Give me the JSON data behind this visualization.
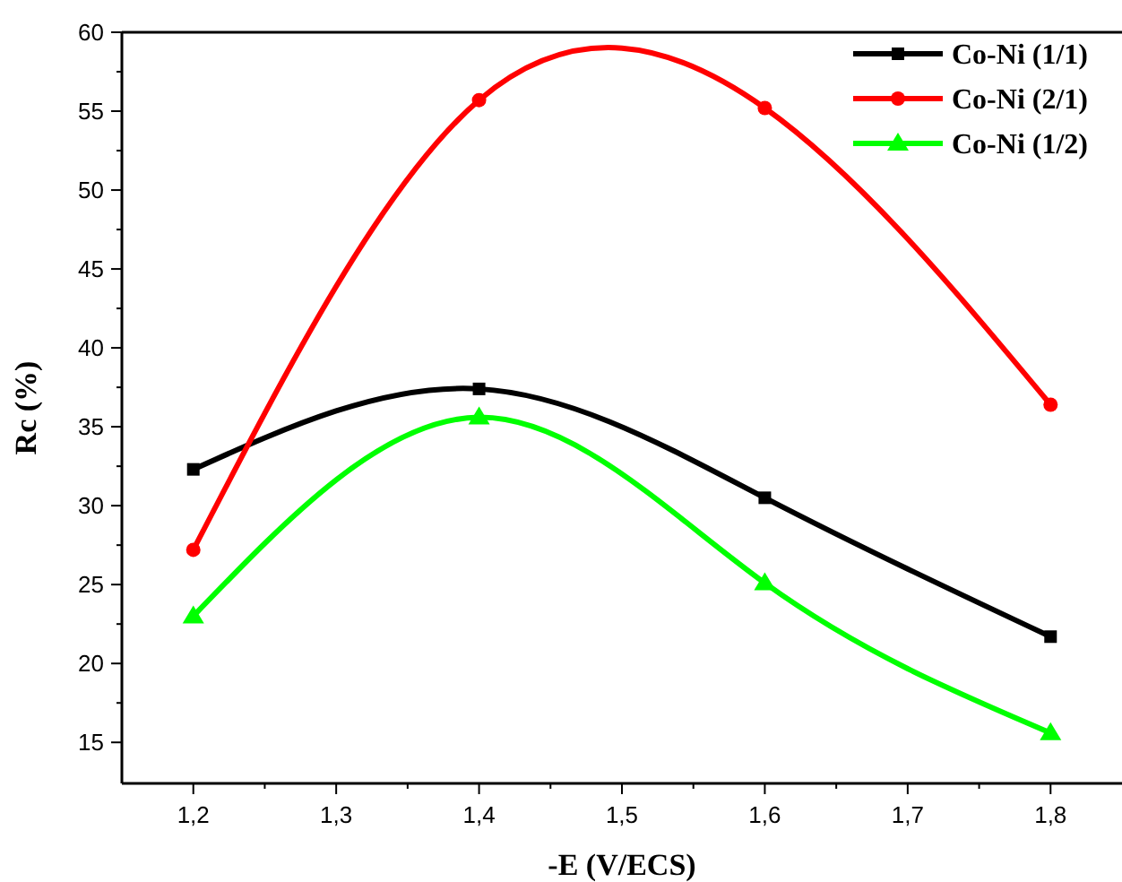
{
  "chart_data": {
    "type": "line",
    "xlabel": "-E (V/ECS)",
    "ylabel": "Rc (%)",
    "x": [
      1.2,
      1.4,
      1.6,
      1.8
    ],
    "series": [
      {
        "name": "Co-Ni (1/1)",
        "color": "#000000",
        "marker": "square",
        "values": [
          32.3,
          37.4,
          30.5,
          21.7
        ]
      },
      {
        "name": "Co-Ni (2/1)",
        "color": "#ff0000",
        "marker": "circle",
        "values": [
          27.2,
          55.7,
          55.2,
          36.4
        ]
      },
      {
        "name": "Co-Ni (1/2)",
        "color": "#00ff00",
        "marker": "triangle",
        "values": [
          23.0,
          35.6,
          25.1,
          15.6
        ]
      }
    ],
    "xlim": [
      1.15,
      1.85
    ],
    "ylim": [
      12.4,
      60
    ],
    "xticks": [
      {
        "value": 1.2,
        "label": "1,2"
      },
      {
        "value": 1.25,
        "label": null
      },
      {
        "value": 1.3,
        "label": "1,3"
      },
      {
        "value": 1.35,
        "label": null
      },
      {
        "value": 1.4,
        "label": "1,4"
      },
      {
        "value": 1.45,
        "label": null
      },
      {
        "value": 1.5,
        "label": "1,5"
      },
      {
        "value": 1.55,
        "label": null
      },
      {
        "value": 1.6,
        "label": "1,6"
      },
      {
        "value": 1.65,
        "label": null
      },
      {
        "value": 1.7,
        "label": "1,7"
      },
      {
        "value": 1.75,
        "label": null
      },
      {
        "value": 1.8,
        "label": "1,8"
      }
    ],
    "yticks": [
      15,
      {
        "value": 17.5,
        "label": null
      },
      20,
      {
        "value": 22.5,
        "label": null
      },
      25,
      {
        "value": 27.5,
        "label": null
      },
      30,
      {
        "value": 32.5,
        "label": null
      },
      35,
      {
        "value": 37.5,
        "label": null
      },
      40,
      {
        "value": 42.5,
        "label": null
      },
      45,
      {
        "value": 47.5,
        "label": null
      },
      50,
      {
        "value": 52.5,
        "label": null
      },
      55,
      {
        "value": 57.5,
        "label": null
      },
      60
    ],
    "legend": "top right",
    "grid": false,
    "line_style": "solid"
  }
}
